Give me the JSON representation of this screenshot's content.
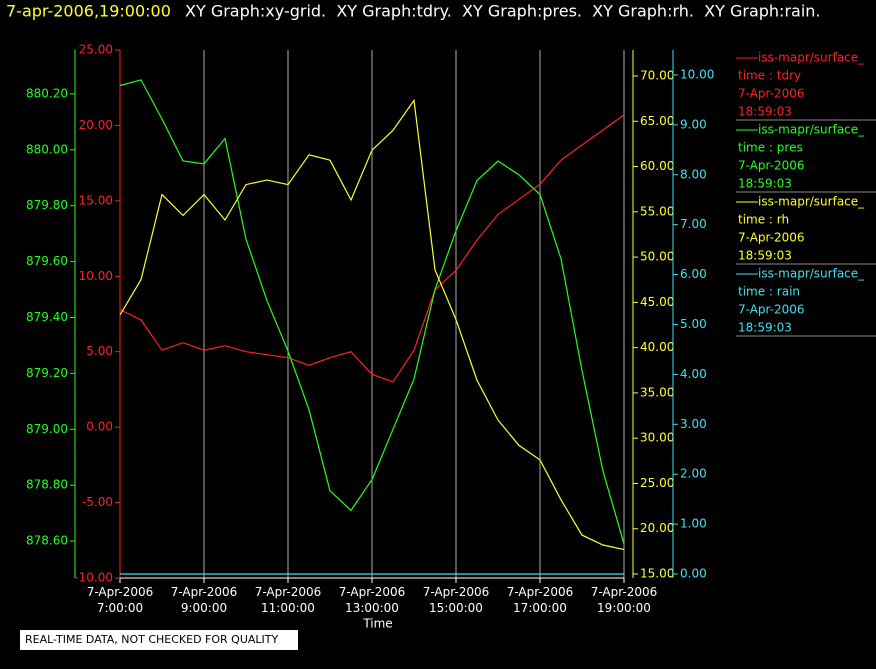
{
  "chart_data": {
    "type": "line",
    "title_time": "7-apr-2006,19:00:00",
    "title": "XY Graph:xy-grid.  XY Graph:tdry.  XY Graph:pres.  XY Graph:rh.  XY Graph:rain.",
    "x_label": "Time",
    "note": "REAL-TIME DATA, NOT CHECKED FOR QUALITY",
    "grid": true,
    "xlim": [
      7,
      19
    ],
    "xticks": [
      {
        "value": 7,
        "label": "7-Apr-2006 7:00:00"
      },
      {
        "value": 9,
        "label": "7-Apr-2006 9:00:00"
      },
      {
        "value": 11,
        "label": "7-Apr-2006 11:00:00"
      },
      {
        "value": 13,
        "label": "7-Apr-2006 13:00:00"
      },
      {
        "value": 15,
        "label": "7-Apr-2006 15:00:00"
      },
      {
        "value": 17,
        "label": "7-Apr-2006 17:00:00"
      },
      {
        "value": 19,
        "label": "7-Apr-2006 19:00:00"
      }
    ],
    "x": [
      7,
      7.5,
      8,
      8.5,
      9,
      9.5,
      10,
      10.5,
      11,
      11.5,
      12,
      12.5,
      13,
      13.5,
      14,
      14.5,
      15,
      15.5,
      16,
      16.5,
      17,
      17.5,
      18,
      18.5,
      19
    ],
    "series": [
      {
        "name": "iss-mapr/surface_",
        "legend_lines": [
          "time : tdry",
          "7-Apr-2006",
          "18:59:03"
        ],
        "color": "#ff2020",
        "ylim": [
          -10,
          25
        ],
        "yticks": [
          {
            "value": -10,
            "label": "-10.00"
          },
          {
            "value": -5,
            "label": "-5.00"
          },
          {
            "value": 0,
            "label": "0.00"
          },
          {
            "value": 5,
            "label": "5.00"
          },
          {
            "value": 10,
            "label": "10.00"
          },
          {
            "value": 15,
            "label": "15.00"
          },
          {
            "value": 20,
            "label": "20.00"
          },
          {
            "value": 25,
            "label": "25.00"
          }
        ],
        "values": [
          7.8,
          7.1,
          5.1,
          5.6,
          5.1,
          5.4,
          5.0,
          4.8,
          4.6,
          4.1,
          4.6,
          5.0,
          3.5,
          3.0,
          5.1,
          9.1,
          10.4,
          12.4,
          14.1,
          15.1,
          16.1,
          17.7,
          18.7,
          19.7,
          20.7
        ]
      },
      {
        "name": "iss-mapr/surface_",
        "legend_lines": [
          "time : pres",
          "7-Apr-2006",
          "18:59:03"
        ],
        "color": "#20ff20",
        "ylim": [
          878.468,
          880.357
        ],
        "yticks": [
          {
            "value": 878.6,
            "label": "878.60"
          },
          {
            "value": 878.8,
            "label": "878.80"
          },
          {
            "value": 879.0,
            "label": "879.00"
          },
          {
            "value": 879.2,
            "label": "879.20"
          },
          {
            "value": 879.4,
            "label": "879.40"
          },
          {
            "value": 879.6,
            "label": "879.60"
          },
          {
            "value": 879.8,
            "label": "879.80"
          },
          {
            "value": 880.0,
            "label": "880.00"
          },
          {
            "value": 880.2,
            "label": "880.20"
          }
        ],
        "values": [
          880.23,
          880.25,
          880.11,
          879.96,
          879.95,
          880.04,
          879.68,
          879.46,
          879.28,
          879.07,
          878.78,
          878.71,
          878.82,
          879.0,
          879.18,
          879.5,
          879.71,
          879.89,
          879.96,
          879.91,
          879.84,
          879.61,
          879.21,
          878.85,
          878.59
        ]
      },
      {
        "name": "iss-mapr/surface_",
        "legend_lines": [
          "time : rh",
          "7-Apr-2006",
          "18:59:03"
        ],
        "color": "#ffff30",
        "ylim": [
          14.56,
          72.87
        ],
        "yticks": [
          {
            "value": 15,
            "label": "15.00"
          },
          {
            "value": 20,
            "label": "20.00"
          },
          {
            "value": 25,
            "label": "25.00"
          },
          {
            "value": 30,
            "label": "30.00"
          },
          {
            "value": 35,
            "label": "35.00"
          },
          {
            "value": 40,
            "label": "40.00"
          },
          {
            "value": 45,
            "label": "45.00"
          },
          {
            "value": 50,
            "label": "50.00"
          },
          {
            "value": 55,
            "label": "55.00"
          },
          {
            "value": 60,
            "label": "60.00"
          },
          {
            "value": 65,
            "label": "65.00"
          },
          {
            "value": 70,
            "label": "70.00"
          }
        ],
        "values": [
          43.6,
          47.5,
          56.9,
          54.6,
          56.9,
          54.1,
          58.0,
          58.5,
          58.0,
          61.3,
          60.7,
          56.3,
          61.8,
          64.0,
          67.3,
          48.6,
          43.1,
          36.4,
          32.0,
          29.2,
          27.6,
          23.2,
          19.3,
          18.2,
          17.7
        ]
      },
      {
        "name": "iss-mapr/surface_",
        "legend_lines": [
          "time : rain",
          "7-Apr-2006",
          "18:59:03"
        ],
        "color": "#40e0f0",
        "ylim": [
          -0.08,
          10.5
        ],
        "yticks": [
          {
            "value": 0,
            "label": "0.00"
          },
          {
            "value": 1,
            "label": "1.00"
          },
          {
            "value": 2,
            "label": "2.00"
          },
          {
            "value": 3,
            "label": "3.00"
          },
          {
            "value": 4,
            "label": "4.00"
          },
          {
            "value": 5,
            "label": "5.00"
          },
          {
            "value": 6,
            "label": "6.00"
          },
          {
            "value": 7,
            "label": "7.00"
          },
          {
            "value": 8,
            "label": "8.00"
          },
          {
            "value": 9,
            "label": "9.00"
          },
          {
            "value": 10,
            "label": "10.00"
          }
        ],
        "values": [
          0,
          0,
          0,
          0,
          0,
          0,
          0,
          0,
          0,
          0,
          0,
          0,
          0,
          0,
          0,
          0,
          0,
          0,
          0,
          0,
          0,
          0,
          0,
          0,
          0
        ]
      }
    ]
  }
}
